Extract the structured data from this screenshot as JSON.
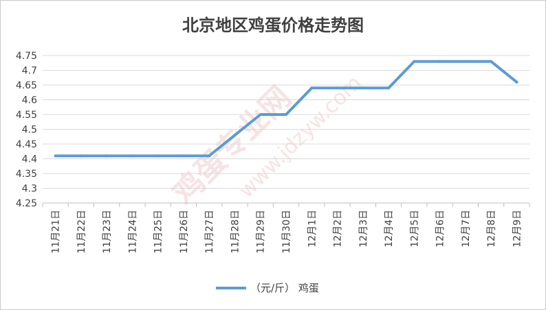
{
  "chart_data": {
    "type": "line",
    "title": "北京地区鸡蛋价格走势图",
    "xlabel": "",
    "ylabel": "",
    "categories": [
      "11月21日",
      "11月22日",
      "11月23日",
      "11月24日",
      "11月25日",
      "11月26日",
      "11月27日",
      "11月28日",
      "11月29日",
      "11月30日",
      "12月1日",
      "12月2日",
      "12月3日",
      "12月4日",
      "12月5日",
      "12月6日",
      "12月7日",
      "12月8日",
      "12月9日"
    ],
    "series": [
      {
        "name": "（元/斤） 鸡蛋",
        "values": [
          4.41,
          4.41,
          4.41,
          4.41,
          4.41,
          4.41,
          4.41,
          4.48,
          4.55,
          4.55,
          4.64,
          4.64,
          4.64,
          4.64,
          4.73,
          4.73,
          4.73,
          4.73,
          4.66
        ]
      }
    ],
    "ylim": [
      4.25,
      4.75
    ],
    "yticks": [
      4.25,
      4.3,
      4.35,
      4.4,
      4.45,
      4.5,
      4.55,
      4.6,
      4.65,
      4.7,
      4.75
    ],
    "ytick_labels": [
      "4.25",
      "4.3",
      "4.35",
      "4.4",
      "4.45",
      "4.5",
      "4.55",
      "4.6",
      "4.65",
      "4.7",
      "4.75"
    ],
    "grid": true,
    "legend_position": "bottom",
    "colors": {
      "line": "#5b9bd5",
      "grid": "#d9d9d9",
      "axis": "#bfbfbf",
      "text": "#404040"
    }
  },
  "watermark": {
    "brand": "鸡蛋专业网",
    "url": "www.jdzyw.com"
  }
}
